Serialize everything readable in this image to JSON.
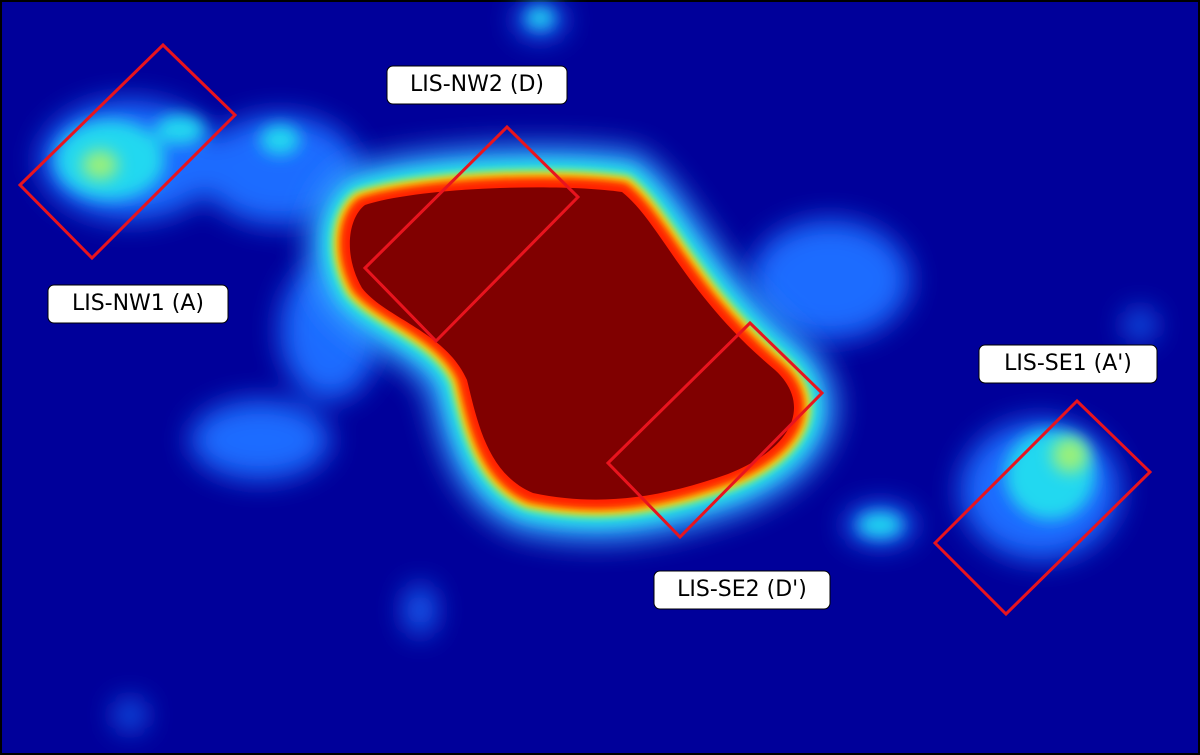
{
  "regions": [
    {
      "label": "LIS-NW1 (A)"
    },
    {
      "label": "LIS-NW2 (D)"
    },
    {
      "label": "LIS-SE1 (A')"
    },
    {
      "label": "LIS-SE2 (D')"
    }
  ]
}
